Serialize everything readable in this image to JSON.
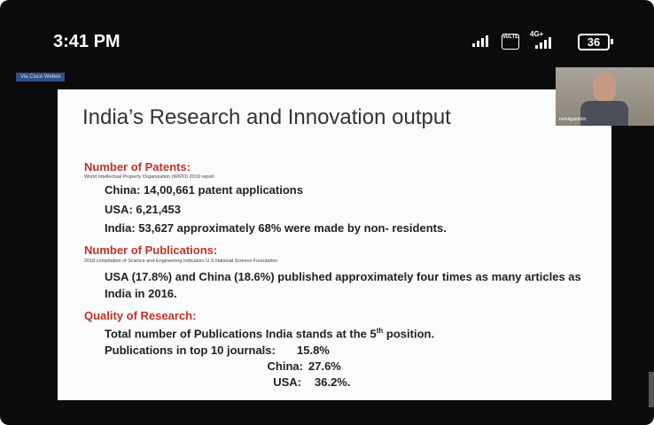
{
  "status_bar": {
    "time": "3:41 PM",
    "volte": "VoLTE",
    "network": "4G+",
    "battery": "36"
  },
  "meeting": {
    "label": "Via Cisco Webex",
    "participant": "mohitgambhir"
  },
  "slide": {
    "title": "India’s Research and Innovation output",
    "sections": [
      {
        "heading": "Number of Patents:",
        "source": "World Intellectual Property Organization (WIPO) 2019 report.",
        "lines": [
          "China: 14,00,661 patent applications",
          "USA: 6,21,453",
          "India: 53,627 approximately 68% were made by non- residents."
        ]
      },
      {
        "heading": "Number of Publications:",
        "source": "2018 compilation of Science and Engineering Indicators U.S National Science Foundation",
        "lines": [
          "USA (17.8%) and China (18.6%) published approximately four times as many articles as India in 2016."
        ]
      },
      {
        "heading": "Quality of Research:",
        "rank_line": {
          "before": "Total number of Publications India stands at the 5",
          "sup": "th",
          "after": " position."
        },
        "journals": [
          {
            "label": "Publications in top 10 journals:",
            "value": "15.8%"
          },
          {
            "label": "China:",
            "value": "27.6%"
          },
          {
            "label": "USA:",
            "value": "36.2%."
          }
        ]
      }
    ]
  }
}
